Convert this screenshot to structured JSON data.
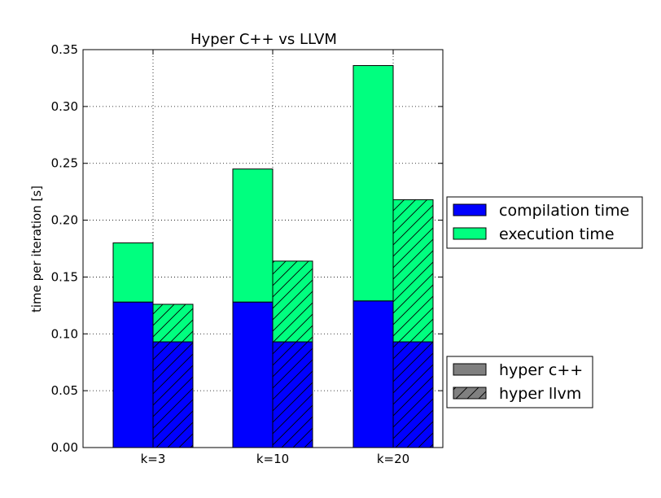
{
  "chart_data": {
    "type": "bar",
    "title": "Hyper C++ vs LLVM",
    "xlabel": "",
    "ylabel": "time per iteration [s]",
    "categories": [
      "k=3",
      "k=10",
      "k=20"
    ],
    "ylim": [
      0,
      0.35
    ],
    "yticks": [
      "0.00",
      "0.05",
      "0.10",
      "0.15",
      "0.20",
      "0.25",
      "0.30",
      "0.35"
    ],
    "grid": true,
    "stacked": true,
    "bars": [
      {
        "category": "k=3",
        "group": "hyper c++",
        "compilation": 0.128,
        "execution": 0.052
      },
      {
        "category": "k=3",
        "group": "hyper llvm",
        "compilation": 0.093,
        "execution": 0.033
      },
      {
        "category": "k=10",
        "group": "hyper c++",
        "compilation": 0.128,
        "execution": 0.117
      },
      {
        "category": "k=10",
        "group": "hyper llvm",
        "compilation": 0.093,
        "execution": 0.071
      },
      {
        "category": "k=20",
        "group": "hyper c++",
        "compilation": 0.129,
        "execution": 0.207
      },
      {
        "category": "k=20",
        "group": "hyper llvm",
        "compilation": 0.093,
        "execution": 0.125
      }
    ],
    "colors": {
      "compilation": "#0000ff",
      "execution": "#00ff7f",
      "neutral": "#808080"
    },
    "legend_components": {
      "placement": "right-middle",
      "entries": [
        {
          "label": "compilation time",
          "color": "#0000ff"
        },
        {
          "label": "execution time",
          "color": "#00ff7f"
        }
      ]
    },
    "legend_groups": {
      "placement": "right-bottom",
      "entries": [
        {
          "label": "hyper c++",
          "hatch": false
        },
        {
          "label": "hyper llvm",
          "hatch": true
        }
      ]
    }
  }
}
